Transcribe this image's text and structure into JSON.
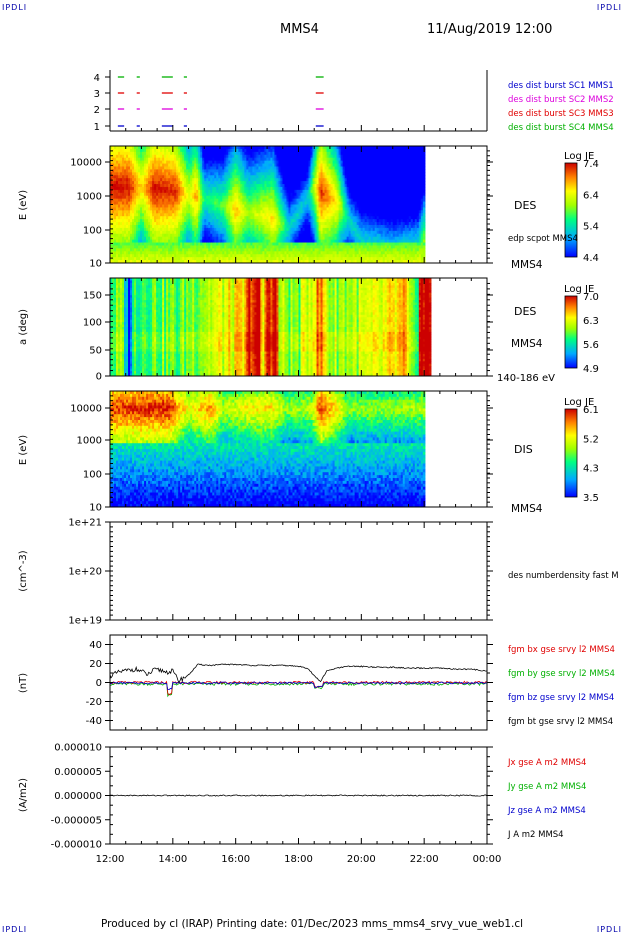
{
  "corners": {
    "tl": "IPDLI",
    "tr": "IPDLI",
    "bl": "IPDLI",
    "br": "IPDLI"
  },
  "header": {
    "spacecraft": "MMS4",
    "datetime": "11/Aug/2019 12:00"
  },
  "footer": {
    "text": "Produced by cl (IRAP)   Printing date: 01/Dec/2023   mms_mms4_srvy_vue_web1.cl"
  },
  "colors": {
    "red": "#e00000",
    "green": "#00b000",
    "blue": "#0000cc",
    "magenta": "#dd00dd",
    "black": "#000000"
  },
  "time_axis": {
    "ticks": [
      "12:00",
      "14:00",
      "16:00",
      "18:00",
      "20:00",
      "22:00",
      "00:00"
    ]
  },
  "chart_data": [
    {
      "type": "scatter",
      "panel": "burst-availability",
      "ylabels": [
        "4",
        "3",
        "2",
        "1"
      ],
      "legend": [
        {
          "name": "des dist burst SC1 MMS1",
          "color": "#0000cc"
        },
        {
          "name": "des dist burst SC2 MMS2",
          "color": "#dd00dd"
        },
        {
          "name": "des dist burst SC3 MMS3",
          "color": "#e00000"
        },
        {
          "name": "des dist burst SC4 MMS4",
          "color": "#00b000"
        }
      ],
      "segments": [
        [
          12.25,
          12.45
        ],
        [
          12.85,
          12.95
        ],
        [
          13.65,
          14.0
        ],
        [
          14.35,
          14.45
        ],
        [
          18.55,
          18.8
        ]
      ]
    },
    {
      "type": "heatmap",
      "panel": "des-energy",
      "ylabel": "E (eV)",
      "ytick_labels": [
        "10000",
        "1000",
        "100",
        "10"
      ],
      "right_labels": [
        "DES",
        "edp scpot MMS4",
        "MMS4"
      ],
      "colorbar": {
        "title": "Log JE",
        "ticks": [
          "7.4",
          "6.4",
          "5.4",
          "4.4"
        ]
      }
    },
    {
      "type": "heatmap",
      "panel": "des-pitch",
      "ylabel": "a (deg)",
      "ytick_labels": [
        "150",
        "100",
        "50",
        "0"
      ],
      "right_labels": [
        "DES",
        "MMS4",
        "140-186 eV"
      ],
      "colorbar": {
        "title": "Log JE",
        "ticks": [
          "7.0",
          "6.3",
          "5.6",
          "4.9"
        ]
      }
    },
    {
      "type": "heatmap",
      "panel": "dis-energy",
      "ylabel": "E (eV)",
      "ytick_labels": [
        "10000",
        "1000",
        "100",
        "10"
      ],
      "right_labels": [
        "DIS",
        "MMS4"
      ],
      "colorbar": {
        "title": "Log JE",
        "ticks": [
          "6.1",
          "5.2",
          "4.3",
          "3.5"
        ]
      }
    },
    {
      "type": "line",
      "panel": "density",
      "ylabel": "(cm^-3)",
      "ytick_labels": [
        "1e+21",
        "1e+20",
        "1e+19"
      ],
      "legend": [
        {
          "name": "des numberdensity fast M",
          "color": "#000000"
        }
      ]
    },
    {
      "type": "line",
      "panel": "magnetic-field",
      "ylabel": "(nT)",
      "ylim": [
        -50,
        50
      ],
      "ytick_labels": [
        "40",
        "20",
        "0",
        "-20",
        "-40"
      ],
      "legend": [
        {
          "name": "fgm bx gse srvy l2 MMS4",
          "color": "#e00000"
        },
        {
          "name": "fgm by gse srvy l2 MMS4",
          "color": "#00b000"
        },
        {
          "name": "fgm bz gse srvy l2 MMS4",
          "color": "#0000cc"
        },
        {
          "name": "fgm bt gse srvy l2 MMS4",
          "color": "#000000"
        }
      ],
      "bt_x": [
        12.0,
        12.3,
        12.6,
        12.8,
        13.0,
        13.2,
        13.4,
        13.6,
        13.8,
        14.0,
        14.1,
        14.2,
        14.5,
        14.8,
        15.2,
        15.6,
        16.0,
        16.5,
        17.0,
        17.5,
        18.0,
        18.3,
        18.5,
        18.7,
        18.9,
        19.2,
        19.6,
        20.0,
        20.5,
        21.0,
        21.5,
        22.0,
        22.5,
        23.0,
        23.5,
        24.0
      ],
      "bt_y": [
        7,
        11,
        13,
        14,
        12,
        8,
        13,
        13,
        11,
        12,
        6,
        2,
        8,
        19,
        18,
        19,
        19,
        18,
        18,
        18,
        17,
        15,
        7,
        1,
        12,
        15,
        17,
        17,
        16,
        16,
        15,
        15,
        15,
        14,
        14,
        12
      ]
    },
    {
      "type": "line",
      "panel": "current-density",
      "ylabel": "(A/m2)",
      "ylim": [
        -1e-05,
        1e-05
      ],
      "ytick_labels": [
        "0.000010",
        "0.000005",
        "0.000000",
        "-0.000005",
        "-0.000010"
      ],
      "legend": [
        {
          "name": "Jx gse A m2 MMS4",
          "color": "#e00000"
        },
        {
          "name": "Jy gse A m2 MMS4",
          "color": "#00b000"
        },
        {
          "name": "Jz gse A m2 MMS4",
          "color": "#0000cc"
        },
        {
          "name": "J A m2 MMS4",
          "color": "#000000"
        }
      ]
    }
  ]
}
